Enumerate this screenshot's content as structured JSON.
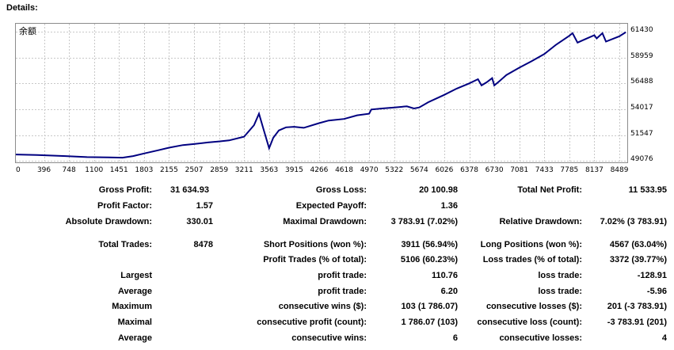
{
  "header": {
    "title": "Details:"
  },
  "chart_data": {
    "type": "line",
    "corner_label": "余额",
    "x_ticks": [
      "0",
      "396",
      "748",
      "1100",
      "1451",
      "1803",
      "2155",
      "2507",
      "2859",
      "3211",
      "3563",
      "3915",
      "4266",
      "4618",
      "4970",
      "5322",
      "5674",
      "6026",
      "6378",
      "6730",
      "7081",
      "7433",
      "7785",
      "8137",
      "8489"
    ],
    "y_ticks": [
      "61430",
      "58959",
      "56488",
      "54017",
      "51547",
      "49076"
    ],
    "xlim": [
      0,
      8600
    ],
    "ylim": [
      48950,
      62200
    ],
    "grid": true,
    "line_color": "#000080",
    "series": [
      {
        "x": [
          0,
          300,
          700,
          1000,
          1300,
          1500,
          1650,
          1803,
          2000,
          2155,
          2350,
          2507,
          2700,
          2859,
          3000,
          3211,
          3350,
          3420,
          3480,
          3563,
          3620,
          3700,
          3800,
          3915,
          4050,
          4266,
          4400,
          4618,
          4800,
          4970,
          5000,
          5150,
          5322,
          5500,
          5600,
          5674,
          5800,
          6026,
          6200,
          6378,
          6500,
          6550,
          6620,
          6700,
          6730,
          6800,
          6900,
          7081,
          7250,
          7433,
          7600,
          7785,
          7830,
          7900,
          8000,
          8137,
          8170,
          8250,
          8300,
          8489,
          8580
        ],
        "y": [
          49700,
          49650,
          49550,
          49450,
          49420,
          49400,
          49550,
          49800,
          50100,
          50350,
          50600,
          50700,
          50850,
          50950,
          51050,
          51400,
          52500,
          53600,
          52200,
          50300,
          51300,
          52000,
          52300,
          52350,
          52250,
          52700,
          52950,
          53100,
          53450,
          53600,
          54000,
          54100,
          54200,
          54300,
          54100,
          54200,
          54700,
          55400,
          56000,
          56500,
          56900,
          56300,
          56600,
          57000,
          56300,
          56700,
          57300,
          58000,
          58600,
          59300,
          60200,
          61050,
          61300,
          60400,
          60700,
          61100,
          60800,
          61300,
          60500,
          61000,
          61400
        ]
      }
    ]
  },
  "stats": {
    "gross_profit": {
      "label": "Gross Profit:",
      "value": "31 634.93"
    },
    "gross_loss": {
      "label": "Gross Loss:",
      "value": "20 100.98"
    },
    "total_net_profit": {
      "label": "Total Net Profit:",
      "value": "11 533.95"
    },
    "profit_factor": {
      "label": "Profit Factor:",
      "value": "1.57"
    },
    "expected_payoff": {
      "label": "Expected Payoff:",
      "value": "1.36"
    },
    "absolute_drawdown": {
      "label": "Absolute Drawdown:",
      "value": "330.01"
    },
    "maximal_drawdown": {
      "label": "Maximal Drawdown:",
      "value": "3 783.91 (7.02%)"
    },
    "relative_drawdown": {
      "label": "Relative Drawdown:",
      "value": "7.02% (3 783.91)"
    },
    "total_trades": {
      "label": "Total Trades:",
      "value": "8478"
    },
    "short_positions": {
      "label": "Short Positions (won %):",
      "value": "3911 (56.94%)"
    },
    "long_positions": {
      "label": "Long Positions (won %):",
      "value": "4567 (63.04%)"
    },
    "profit_trades": {
      "label": "Profit Trades (% of total):",
      "value": "5106 (60.23%)"
    },
    "loss_trades": {
      "label": "Loss trades (% of total):",
      "value": "3372 (39.77%)"
    },
    "largest": {
      "label": "Largest",
      "profit_label": "profit trade:",
      "profit_value": "110.76",
      "loss_label": "loss trade:",
      "loss_value": "-128.91"
    },
    "average": {
      "label": "Average",
      "profit_label": "profit trade:",
      "profit_value": "6.20",
      "loss_label": "loss trade:",
      "loss_value": "-5.96"
    },
    "maximum": {
      "label": "Maximum",
      "profit_label": "consecutive wins ($):",
      "profit_value": "103 (1 786.07)",
      "loss_label": "consecutive losses ($):",
      "loss_value": "201 (-3 783.91)"
    },
    "maximal": {
      "label": "Maximal",
      "profit_label": "consecutive profit (count):",
      "profit_value": "1 786.07 (103)",
      "loss_label": "consecutive loss (count):",
      "loss_value": "-3 783.91 (201)"
    },
    "average_consec": {
      "label": "Average",
      "profit_label": "consecutive wins:",
      "profit_value": "6",
      "loss_label": "consecutive losses:",
      "loss_value": "4"
    }
  }
}
